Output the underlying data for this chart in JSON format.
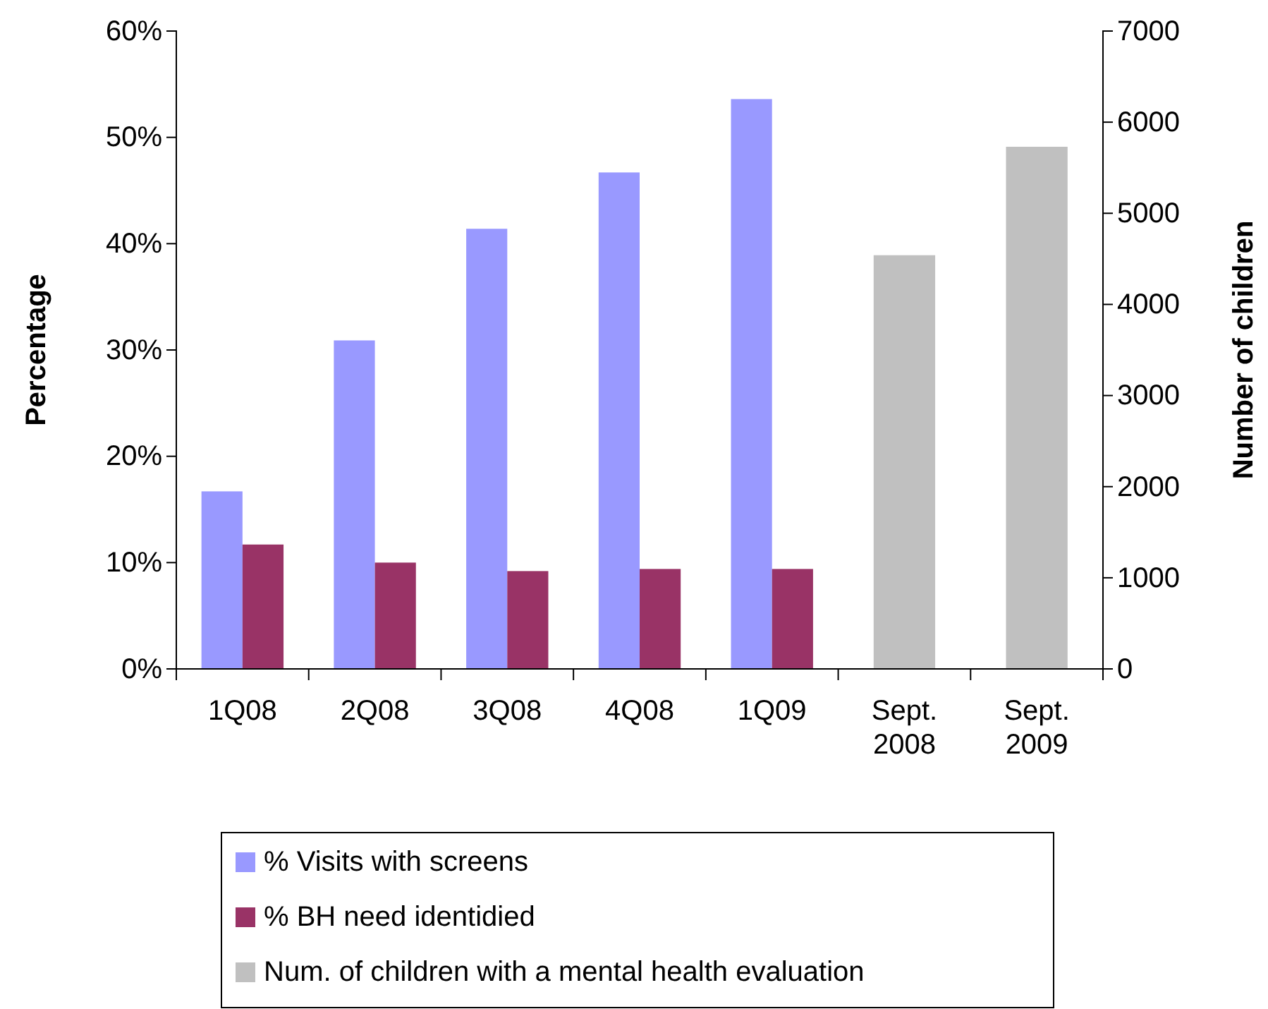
{
  "chart_data": {
    "type": "bar",
    "categories": [
      "1Q08",
      "2Q08",
      "3Q08",
      "4Q08",
      "1Q09",
      "Sept.\n2008",
      "Sept.\n2009"
    ],
    "ylabel": "Percentage",
    "y2label": "Number of children",
    "ylim": [
      0,
      60
    ],
    "yticks": [
      {
        "value": 0,
        "label": "0%"
      },
      {
        "value": 10,
        "label": "10%"
      },
      {
        "value": 20,
        "label": "20%"
      },
      {
        "value": 30,
        "label": "30%"
      },
      {
        "value": 40,
        "label": "40%"
      },
      {
        "value": 50,
        "label": "50%"
      },
      {
        "value": 60,
        "label": "60%"
      }
    ],
    "y2lim": [
      0,
      7000
    ],
    "y2ticks": [
      0,
      1000,
      2000,
      3000,
      4000,
      5000,
      6000,
      7000
    ],
    "legend": "bottom",
    "grid": false,
    "series": [
      {
        "name": "% Visits with screens",
        "color": "#9999ff",
        "values": [
          16.7,
          30.9,
          41.4,
          46.7,
          53.6,
          null,
          null
        ]
      },
      {
        "name": "% BH need identidied",
        "color": "#993366",
        "values": [
          11.7,
          10.0,
          9.2,
          9.4,
          9.4,
          null,
          null
        ]
      },
      {
        "name": "Num. of children with a mental health evaluation",
        "color": "#c0c0c0",
        "axis": "y2",
        "values": [
          null,
          null,
          null,
          null,
          null,
          4540,
          5730
        ]
      }
    ]
  }
}
